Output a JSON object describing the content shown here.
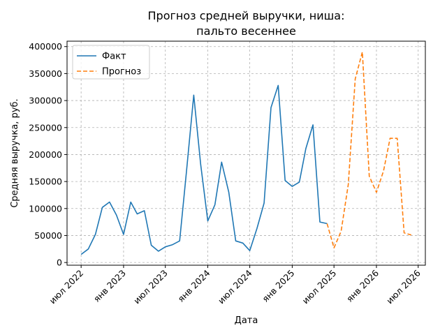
{
  "chart_data": {
    "type": "line",
    "title": "Прогноз средней выручки, ниша:\nпальто весеннее",
    "xlabel": "Дата",
    "ylabel": "Средняя выручка, руб.",
    "ylim": [
      -5000,
      410000
    ],
    "xlim": [
      "2022-05-01",
      "2026-08-01"
    ],
    "yticks": [
      0,
      50000,
      100000,
      150000,
      200000,
      250000,
      300000,
      350000,
      400000
    ],
    "ytick_labels": [
      "0",
      "50000",
      "100000",
      "150000",
      "200000",
      "250000",
      "300000",
      "350000",
      "400000"
    ],
    "xticks": [
      "2022-07-01",
      "2023-01-01",
      "2023-07-01",
      "2024-01-01",
      "2024-07-01",
      "2025-01-01",
      "2025-07-01",
      "2026-01-01",
      "2026-07-01"
    ],
    "xtick_labels": [
      "июл 2022",
      "янв 2023",
      "июл 2023",
      "янв 2024",
      "июл 2024",
      "янв 2025",
      "июл 2025",
      "янв 2026",
      "июл 2026"
    ],
    "grid": true,
    "legend_position": "top-left",
    "series": [
      {
        "name": "Факт",
        "color": "#1f77b4",
        "style": "solid",
        "points": [
          [
            "2022-07-01",
            15000
          ],
          [
            "2022-08-01",
            25000
          ],
          [
            "2022-09-01",
            52000
          ],
          [
            "2022-10-01",
            102000
          ],
          [
            "2022-11-01",
            112000
          ],
          [
            "2022-12-01",
            88000
          ],
          [
            "2023-01-01",
            52000
          ],
          [
            "2023-02-01",
            112000
          ],
          [
            "2023-03-01",
            90000
          ],
          [
            "2023-04-01",
            96000
          ],
          [
            "2023-05-01",
            32000
          ],
          [
            "2023-06-01",
            21000
          ],
          [
            "2023-07-01",
            29000
          ],
          [
            "2023-08-01",
            33000
          ],
          [
            "2023-09-01",
            40000
          ],
          [
            "2023-10-01",
            170000
          ],
          [
            "2023-11-01",
            310000
          ],
          [
            "2023-12-01",
            182000
          ],
          [
            "2024-01-01",
            77000
          ],
          [
            "2024-02-01",
            107000
          ],
          [
            "2024-03-01",
            186000
          ],
          [
            "2024-04-01",
            130000
          ],
          [
            "2024-05-01",
            40000
          ],
          [
            "2024-06-01",
            36000
          ],
          [
            "2024-07-01",
            22000
          ],
          [
            "2024-08-01",
            63000
          ],
          [
            "2024-09-01",
            110000
          ],
          [
            "2024-10-01",
            287000
          ],
          [
            "2024-11-01",
            328000
          ],
          [
            "2024-12-01",
            152000
          ],
          [
            "2025-01-01",
            141000
          ],
          [
            "2025-02-01",
            149000
          ],
          [
            "2025-03-01",
            211000
          ],
          [
            "2025-04-01",
            255000
          ],
          [
            "2025-05-01",
            75000
          ],
          [
            "2025-06-01",
            72000
          ]
        ]
      },
      {
        "name": "Прогноз",
        "color": "#ff7f0e",
        "style": "dashed",
        "points": [
          [
            "2025-06-01",
            72000
          ],
          [
            "2025-07-01",
            27000
          ],
          [
            "2025-08-01",
            58000
          ],
          [
            "2025-09-01",
            145000
          ],
          [
            "2025-10-01",
            340000
          ],
          [
            "2025-11-01",
            390000
          ],
          [
            "2025-12-01",
            160000
          ],
          [
            "2026-01-01",
            130000
          ],
          [
            "2026-02-01",
            170000
          ],
          [
            "2026-03-01",
            230000
          ],
          [
            "2026-04-01",
            230000
          ],
          [
            "2026-05-01",
            55000
          ],
          [
            "2026-06-01",
            51000
          ]
        ]
      }
    ]
  }
}
